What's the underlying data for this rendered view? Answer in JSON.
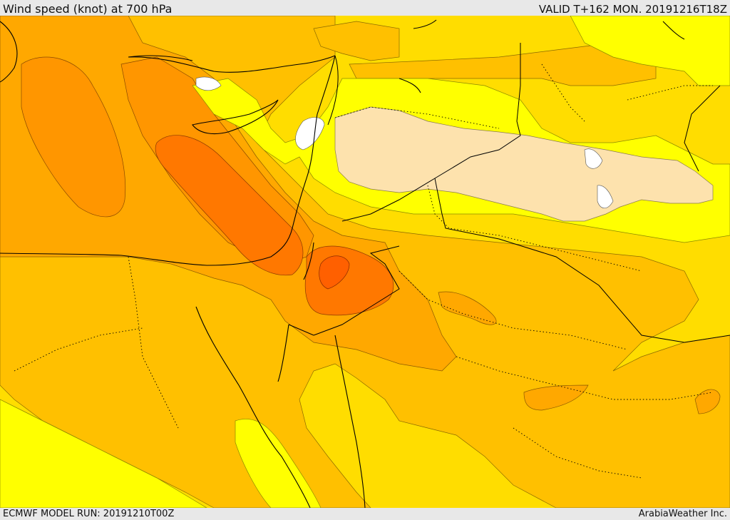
{
  "header": {
    "title": "Wind speed (knot) at 700 hPa",
    "valid": "VALID T+162 MON. 20191216T18Z"
  },
  "footer": {
    "model_run": "ECMWF MODEL RUN: 20191210T00Z",
    "credit": "ArabiaWeather Inc."
  },
  "palette": {
    "white": "#ffffff",
    "light_yellow": "#ffff00",
    "tan": "#fde2ad",
    "gold": "#ffdd00",
    "amber": "#ffc000",
    "orange_light": "#ffa800",
    "orange": "#ff9600",
    "orange_dark": "#ff7800",
    "orange_deep": "#ff6000",
    "coast": "#000000",
    "border": "#000000"
  }
}
